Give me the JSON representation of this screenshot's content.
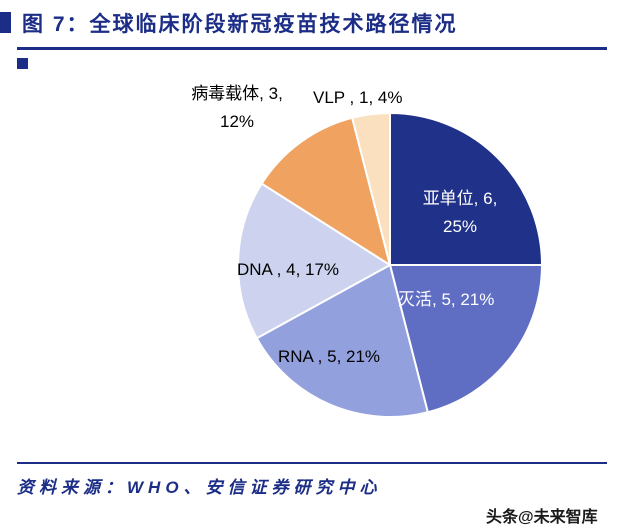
{
  "header": {
    "title": "图 7：全球临床阶段新冠疫苗技术路径情况"
  },
  "colors": {
    "accent": "#1b2d86",
    "slice_separator": "#ffffff"
  },
  "chart_data": {
    "type": "pie",
    "title": "全球临床阶段新冠疫苗技术路径情况",
    "direction": "clockwise",
    "start_angle_deg": 0,
    "legend": "none",
    "labels_on_chart": true,
    "slices": [
      {
        "id": "subunit",
        "label": "亚单位",
        "count": 6,
        "pct": 25,
        "color": "#203189",
        "text_color": "#ffffff",
        "display": [
          "亚单位, 6,",
          "25%"
        ]
      },
      {
        "id": "inactivated",
        "label": "灭活",
        "count": 5,
        "pct": 21,
        "color": "#5f6ec3",
        "text_color": "#ffffff",
        "display": [
          "灭活, 5, 21%"
        ]
      },
      {
        "id": "rna",
        "label": "RNA",
        "count": 5,
        "pct": 21,
        "color": "#93a0de",
        "text_color": "#000000",
        "display": [
          "RNA , 5, 21%"
        ]
      },
      {
        "id": "dna",
        "label": "DNA",
        "count": 4,
        "pct": 17,
        "color": "#cdd3ef",
        "text_color": "#000000",
        "display": [
          "DNA , 4, 17%"
        ]
      },
      {
        "id": "viral-vector",
        "label": "病毒载体",
        "count": 3,
        "pct": 12,
        "color": "#f0a360",
        "text_color": "#000000",
        "display": [
          "病毒载体, 3,",
          "12%"
        ]
      },
      {
        "id": "vlp",
        "label": "VLP",
        "count": 1,
        "pct": 4,
        "color": "#fbe0bf",
        "text_color": "#000000",
        "display": [
          "VLP , 1, 4%"
        ]
      }
    ]
  },
  "footer": {
    "source": "资料来源：WHO、安信证券研究中心",
    "watermark": "头条@未来智库"
  }
}
